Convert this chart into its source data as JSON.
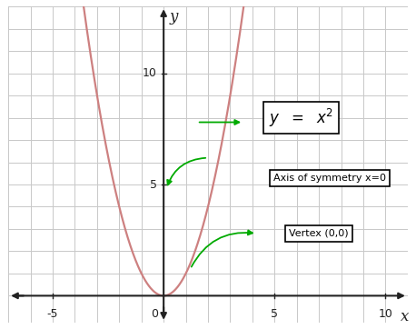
{
  "xlim": [
    -7,
    11
  ],
  "ylim": [
    -1.2,
    13
  ],
  "xticks": [
    -5,
    5,
    10
  ],
  "yticks": [
    5,
    10
  ],
  "x0_label": "0",
  "xlabel": "x",
  "ylabel": "y",
  "curve_color": "#cd8080",
  "curve_linewidth": 1.6,
  "axis_color": "#222222",
  "grid_color": "#c8c8c8",
  "annotation_color": "#00aa00",
  "background_color": "#ffffff",
  "label_sym": "Axis of symmetry x=0",
  "label_vtx": "Vertex (0,0)",
  "tick_fontsize": 9,
  "axis_label_fontsize": 12
}
